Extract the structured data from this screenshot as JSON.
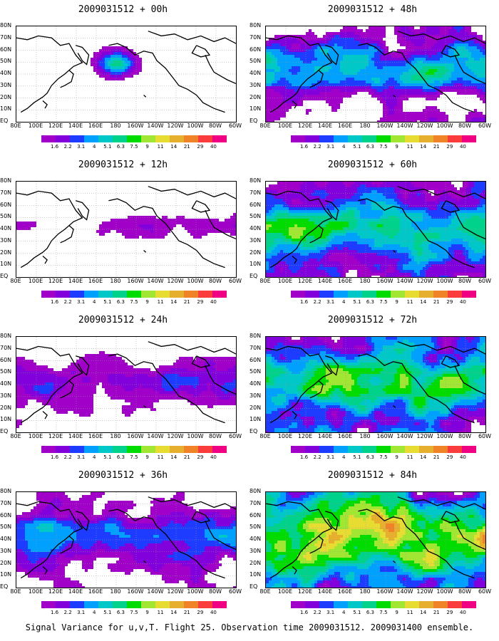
{
  "panels": [
    {
      "title": "2009031512 + 00h",
      "intensity": 0
    },
    {
      "title": "2009031512 + 48h",
      "intensity": 4
    },
    {
      "title": "2009031512 + 12h",
      "intensity": 1
    },
    {
      "title": "2009031512 + 60h",
      "intensity": 5
    },
    {
      "title": "2009031512 + 24h",
      "intensity": 2
    },
    {
      "title": "2009031512 + 72h",
      "intensity": 6
    },
    {
      "title": "2009031512 + 36h",
      "intensity": 3
    },
    {
      "title": "2009031512 + 84h",
      "intensity": 7
    }
  ],
  "lat_labels": [
    "80N",
    "70N",
    "60N",
    "50N",
    "40N",
    "30N",
    "20N",
    "10N",
    "EQ"
  ],
  "lon_labels": [
    "80E",
    "100E",
    "120E",
    "140E",
    "160E",
    "180",
    "160W",
    "140W",
    "120W",
    "100W",
    "80W",
    "60W"
  ],
  "colorbar": {
    "labels": [
      "1.6",
      "2.2",
      "3.1",
      "4",
      "5.1",
      "6.3",
      "7.5",
      "9",
      "11",
      "14",
      "21",
      "29",
      "40"
    ],
    "colors": [
      "#a000c8",
      "#8200dc",
      "#1e3cff",
      "#00a0ff",
      "#00c8c8",
      "#00d28c",
      "#00dc00",
      "#a0e632",
      "#e6dc32",
      "#e6af2d",
      "#f08228",
      "#fa3c3c",
      "#f00082"
    ]
  },
  "caption": "Signal Variance for u,v,T. Flight 25. Observation time 2009031512. 2009031400 ensemble."
}
